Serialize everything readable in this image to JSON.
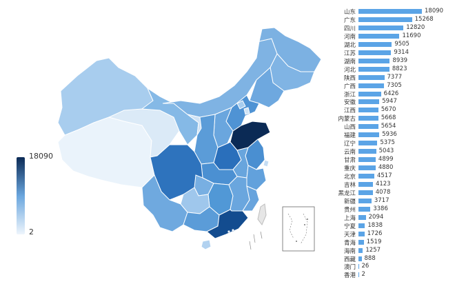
{
  "legend": {
    "max_label": "18090",
    "min_label": "2",
    "color_low": "#eef5fc",
    "color_high": "#0b2a55"
  },
  "accent_bar_color": "#5ba4e6",
  "chart_data": {
    "type": "bar",
    "orientation": "horizontal",
    "categories": [
      "山东",
      "广东",
      "四川",
      "河南",
      "湖北",
      "江苏",
      "湖南",
      "河北",
      "陕西",
      "广西",
      "浙江",
      "安徽",
      "江西",
      "内蒙古",
      "山西",
      "福建",
      "辽宁",
      "云南",
      "甘肃",
      "重庆",
      "北京",
      "吉林",
      "黑龙江",
      "新疆",
      "贵州",
      "上海",
      "宁夏",
      "天津",
      "青海",
      "海南",
      "西藏",
      "澳门",
      "香港"
    ],
    "values": [
      18090,
      15268,
      12820,
      11690,
      9505,
      9314,
      8939,
      8823,
      7377,
      7305,
      6426,
      5947,
      5670,
      5668,
      5654,
      5936,
      5375,
      5043,
      4899,
      4880,
      4517,
      4123,
      4078,
      3717,
      3386,
      2094,
      1838,
      1726,
      1519,
      1257,
      888,
      26,
      2
    ],
    "value_labels": [
      "18090",
      "15268",
      "12820",
      "11690",
      "9505",
      "9314",
      "8939",
      "8823",
      "7377",
      "7305",
      "6426",
      "5947",
      "5670",
      "5668",
      "5654",
      "5936",
      "5375",
      "5043",
      "4899",
      "4880",
      "4517",
      "4123",
      "4078",
      "3717",
      "3386",
      "2094",
      "1838",
      "1726",
      "1519",
      "1257",
      "888",
      "26",
      "2"
    ]
  }
}
